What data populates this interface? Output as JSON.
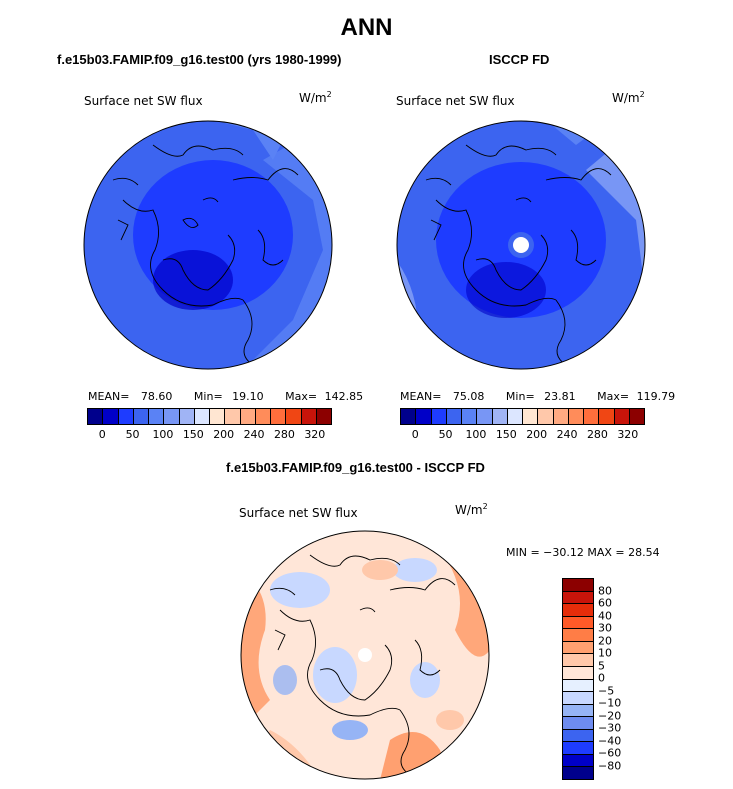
{
  "title": "ANN",
  "panels": [
    {
      "subtitle": "f.e15b03.FAMIP.f09_g16.test00 (yrs 1980-1999)",
      "variable": "Surface net SW flux",
      "units": "W/m",
      "units_sup": "2",
      "stats": {
        "mean_label": "MEAN=",
        "mean": "78.60",
        "min_label": "Min=",
        "min": "19.10",
        "max_label": "Max=",
        "max": "142.85"
      }
    },
    {
      "subtitle": "ISCCP FD",
      "variable": "Surface net SW flux",
      "units": "W/m",
      "units_sup": "2",
      "stats": {
        "mean_label": "MEAN=",
        "mean": "75.08",
        "min_label": "Min=",
        "min": "23.81",
        "max_label": "Max=",
        "max": "119.79"
      }
    }
  ],
  "diff_panel": {
    "subtitle": "f.e15b03.FAMIP.f09_g16.test00 - ISCCP FD",
    "variable": "Surface net SW flux",
    "units": "W/m",
    "units_sup": "2",
    "minmax": "MIN = −30.12 MAX =  28.54"
  },
  "colorbar_horizontal": {
    "colors": [
      "#00008c",
      "#0000c8",
      "#1e3cff",
      "#3c64f0",
      "#5a82f5",
      "#7896f5",
      "#a0b4f5",
      "#dce6ff",
      "#ffe6d2",
      "#ffc8aa",
      "#ffaa82",
      "#ff8c5a",
      "#ff6e3c",
      "#f04614",
      "#c8140a",
      "#8c0000"
    ],
    "ticks": [
      "0",
      "50",
      "100",
      "150",
      "200",
      "240",
      "280",
      "320"
    ]
  },
  "colorbar_vertical": {
    "colors": [
      "#8c0000",
      "#c8140a",
      "#e62d0a",
      "#ff5a28",
      "#ff7d46",
      "#ffa070",
      "#ffc8aa",
      "#ffe6d8",
      "#e6f0ff",
      "#c8d8ff",
      "#96b4f5",
      "#6e8cf0",
      "#3c64f0",
      "#1e3cff",
      "#0000c8",
      "#00008c"
    ],
    "ticks": [
      "80",
      "60",
      "40",
      "30",
      "20",
      "10",
      "5",
      "0",
      "−5",
      "−10",
      "−20",
      "−30",
      "−40",
      "−60",
      "−80"
    ]
  }
}
